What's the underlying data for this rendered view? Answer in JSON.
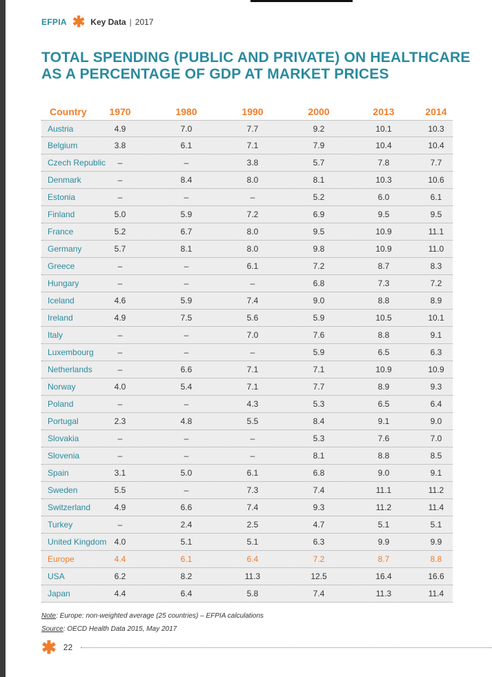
{
  "header": {
    "brand": "EFPIA",
    "star": "✱",
    "section": "Key Data",
    "separator": "|",
    "year": "2017"
  },
  "title": {
    "line1": "TOTAL SPENDING (PUBLIC AND PRIVATE) ON HEALTHCARE",
    "line2": "AS A PERCENTAGE OF GDP AT MARKET PRICES"
  },
  "table": {
    "columns": [
      "Country",
      "1970",
      "1980",
      "1990",
      "2000",
      "2013",
      "2014"
    ],
    "rows": [
      [
        "Austria",
        "4.9",
        "7.0",
        "7.7",
        "9.2",
        "10.1",
        "10.3"
      ],
      [
        "Belgium",
        "3.8",
        "6.1",
        "7.1",
        "7.9",
        "10.4",
        "10.4"
      ],
      [
        "Czech Republic",
        "–",
        "–",
        "3.8",
        "5.7",
        "7.8",
        "7.7"
      ],
      [
        "Denmark",
        "–",
        "8.4",
        "8.0",
        "8.1",
        "10.3",
        "10.6"
      ],
      [
        "Estonia",
        "–",
        "–",
        "–",
        "5.2",
        "6.0",
        "6.1"
      ],
      [
        "Finland",
        "5.0",
        "5.9",
        "7.2",
        "6.9",
        "9.5",
        "9.5"
      ],
      [
        "France",
        "5.2",
        "6.7",
        "8.0",
        "9.5",
        "10.9",
        "11.1"
      ],
      [
        "Germany",
        "5.7",
        "8.1",
        "8.0",
        "9.8",
        "10.9",
        "11.0"
      ],
      [
        "Greece",
        "–",
        "–",
        "6.1",
        "7.2",
        "8.7",
        "8.3"
      ],
      [
        "Hungary",
        "–",
        "–",
        "–",
        "6.8",
        "7.3",
        "7.2"
      ],
      [
        "Iceland",
        "4.6",
        "5.9",
        "7.4",
        "9.0",
        "8.8",
        "8.9"
      ],
      [
        "Ireland",
        "4.9",
        "7.5",
        "5.6",
        "5.9",
        "10.5",
        "10.1"
      ],
      [
        "Italy",
        "–",
        "–",
        "7.0",
        "7.6",
        "8.8",
        "9.1"
      ],
      [
        "Luxembourg",
        "–",
        "–",
        "–",
        "5.9",
        "6.5",
        "6.3"
      ],
      [
        "Netherlands",
        "–",
        "6.6",
        "7.1",
        "7.1",
        "10.9",
        "10.9"
      ],
      [
        "Norway",
        "4.0",
        "5.4",
        "7.1",
        "7.7",
        "8.9",
        "9.3"
      ],
      [
        "Poland",
        "–",
        "–",
        "4.3",
        "5.3",
        "6.5",
        "6.4"
      ],
      [
        "Portugal",
        "2.3",
        "4.8",
        "5.5",
        "8.4",
        "9.1",
        "9.0"
      ],
      [
        "Slovakia",
        "–",
        "–",
        "–",
        "5.3",
        "7.6",
        "7.0"
      ],
      [
        "Slovenia",
        "–",
        "–",
        "–",
        "8.1",
        "8.8",
        "8.5"
      ],
      [
        "Spain",
        "3.1",
        "5.0",
        "6.1",
        "6.8",
        "9.0",
        "9.1"
      ],
      [
        "Sweden",
        "5.5",
        "–",
        "7.3",
        "7.4",
        "11.1",
        "11.2"
      ],
      [
        "Switzerland",
        "4.9",
        "6.6",
        "7.4",
        "9.3",
        "11.2",
        "11.4"
      ],
      [
        "Turkey",
        "–",
        "2.4",
        "2.5",
        "4.7",
        "5.1",
        "5.1"
      ],
      [
        "United Kingdom",
        "4.0",
        "5.1",
        "5.1",
        "6.3",
        "9.9",
        "9.9"
      ],
      [
        "Europe",
        "4.4",
        "6.1",
        "6.4",
        "7.2",
        "8.7",
        "8.8"
      ],
      [
        "USA",
        "6.2",
        "8.2",
        "11.3",
        "12.5",
        "16.4",
        "16.6"
      ],
      [
        "Japan",
        "4.4",
        "6.4",
        "5.8",
        "7.4",
        "11.3",
        "11.4"
      ]
    ]
  },
  "notes": {
    "note_label": "Note",
    "note_text": ": Europe: non-weighted average (25 countries) – EFPIA calculations",
    "source_label": "Source",
    "source_text": ": OECD Health Data 2015, May 2017"
  },
  "footer": {
    "star": "✱",
    "page_number": "22"
  },
  "colors": {
    "teal": "#2a8a9e",
    "orange": "#f07d2a",
    "row_bg": "#ededed"
  }
}
